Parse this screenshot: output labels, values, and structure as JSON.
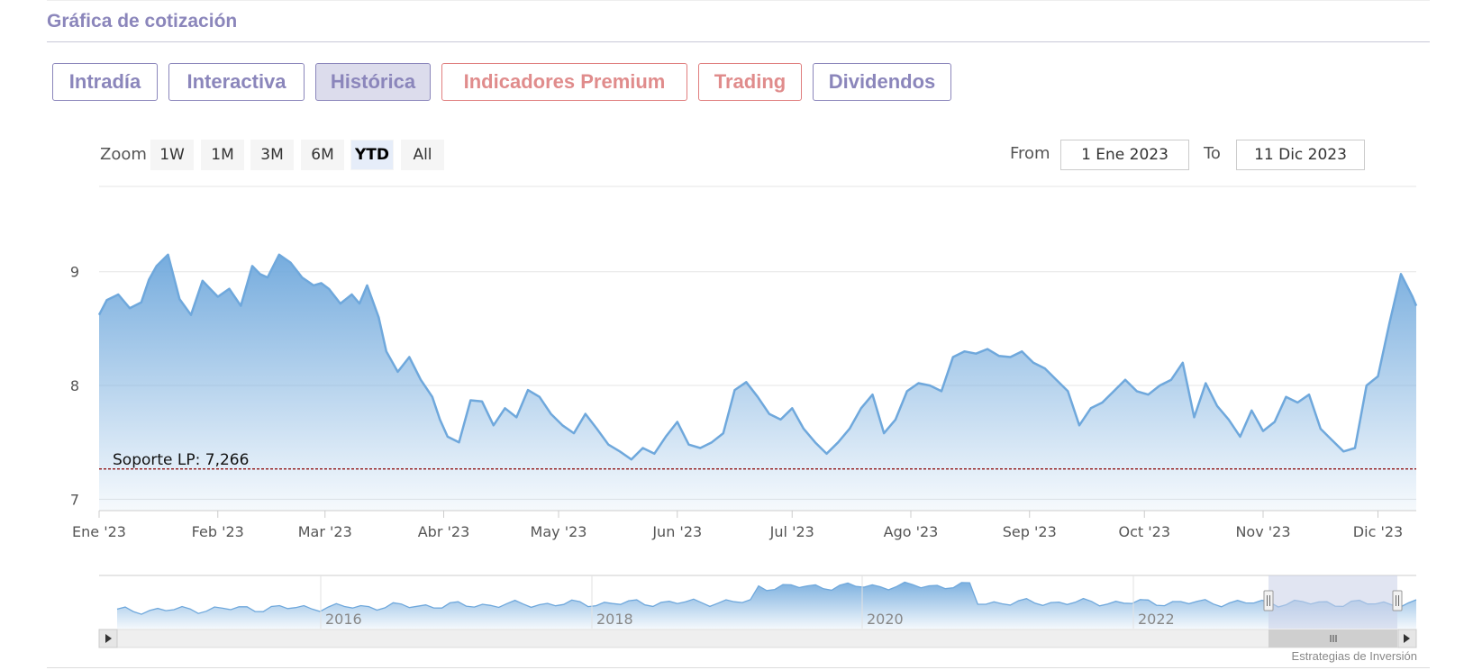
{
  "section": {
    "title": "Gráfica de cotización"
  },
  "tabs": [
    {
      "label": "Intradía",
      "active": false,
      "style": "normal"
    },
    {
      "label": "Interactiva",
      "active": false,
      "style": "normal"
    },
    {
      "label": "Histórica",
      "active": true,
      "style": "normal"
    },
    {
      "label": "Indicadores Premium",
      "active": false,
      "style": "red"
    },
    {
      "label": "Trading",
      "active": false,
      "style": "red"
    },
    {
      "label": "Dividendos",
      "active": false,
      "style": "normal"
    }
  ],
  "zoom": {
    "label": "Zoom",
    "buttons": [
      "1W",
      "1M",
      "3M",
      "6M",
      "YTD",
      "All"
    ],
    "selected": "YTD"
  },
  "range": {
    "from_label": "From",
    "from_value": "1 Ene 2023",
    "to_label": "To",
    "to_value": "11 Dic 2023"
  },
  "credit": "Estrategias de Inversión",
  "colors": {
    "accent": "#8b86bb",
    "premium": "#e08c8c",
    "line": "#6fa8dc",
    "support": "#8b0000"
  },
  "chart_data": {
    "type": "area",
    "title": "",
    "xlabel": "",
    "ylabel": "",
    "ylim": [
      6.9,
      9.75
    ],
    "yticks": [
      7,
      8,
      9
    ],
    "xticks": [
      "Ene '23",
      "Feb '23",
      "Mar '23",
      "Abr '23",
      "May '23",
      "Jun '23",
      "Jul '23",
      "Ago '23",
      "Sep '23",
      "Oct '23",
      "Nov '23",
      "Dic '23"
    ],
    "grid": true,
    "legend": "none",
    "series": [
      {
        "x": [
          0,
          2,
          5,
          8,
          11,
          13,
          15,
          18,
          21,
          24,
          27,
          29,
          31,
          34,
          37,
          40,
          42,
          44,
          47,
          50,
          53,
          56,
          58,
          60,
          63,
          66,
          68,
          70,
          73,
          75,
          78,
          81,
          84,
          87,
          89,
          91,
          94,
          97,
          100,
          103,
          106,
          109,
          112,
          115,
          118,
          121,
          124,
          127,
          130,
          133,
          136,
          139,
          142,
          145,
          148,
          151,
          154,
          157,
          160,
          163,
          166,
          169,
          172,
          175,
          178,
          181,
          184,
          187,
          190,
          193,
          196,
          199,
          202,
          205,
          208,
          211,
          214,
          217,
          220,
          223,
          226,
          229,
          232,
          235,
          238,
          241,
          244,
          247,
          250,
          253,
          256,
          259,
          262,
          265,
          268,
          271,
          274,
          277,
          280,
          283,
          286,
          289,
          292,
          295,
          298,
          301,
          304,
          307,
          310,
          313,
          316,
          319,
          322,
          325,
          328,
          331,
          334,
          337,
          340,
          343,
          344
        ],
        "values": [
          8.62,
          8.75,
          8.8,
          8.68,
          8.73,
          8.93,
          9.05,
          9.15,
          8.76,
          8.62,
          8.92,
          8.85,
          8.78,
          8.85,
          8.7,
          9.05,
          8.98,
          8.95,
          9.15,
          9.08,
          8.95,
          8.88,
          8.9,
          8.85,
          8.72,
          8.8,
          8.72,
          8.88,
          8.6,
          8.3,
          8.12,
          8.25,
          8.05,
          7.9,
          7.7,
          7.55,
          7.5,
          7.87,
          7.86,
          7.65,
          7.8,
          7.72,
          7.96,
          7.9,
          7.75,
          7.65,
          7.58,
          7.75,
          7.62,
          7.48,
          7.42,
          7.35,
          7.45,
          7.4,
          7.55,
          7.68,
          7.48,
          7.45,
          7.5,
          7.58,
          7.96,
          8.03,
          7.9,
          7.75,
          7.7,
          7.8,
          7.62,
          7.5,
          7.4,
          7.5,
          7.62,
          7.8,
          7.92,
          7.58,
          7.7,
          7.95,
          8.02,
          8.0,
          7.95,
          8.25,
          8.3,
          8.28,
          8.32,
          8.26,
          8.25,
          8.3,
          8.2,
          8.15,
          8.05,
          7.95,
          7.65,
          7.8,
          7.85,
          7.95,
          8.05,
          7.95,
          7.92,
          8.0,
          8.05,
          8.2,
          7.72,
          8.02,
          7.82,
          7.7,
          7.55,
          7.78,
          7.6,
          7.68,
          7.9,
          7.85,
          7.92,
          7.62,
          7.52,
          7.42,
          7.45,
          8.0,
          8.08,
          8.55,
          8.98,
          8.78,
          8.7
        ]
      }
    ],
    "support": {
      "label": "Soporte LP: 7,266",
      "value": 7.266
    },
    "navigator": {
      "xticks": [
        "2016",
        "2018",
        "2020",
        "2022"
      ]
    }
  }
}
